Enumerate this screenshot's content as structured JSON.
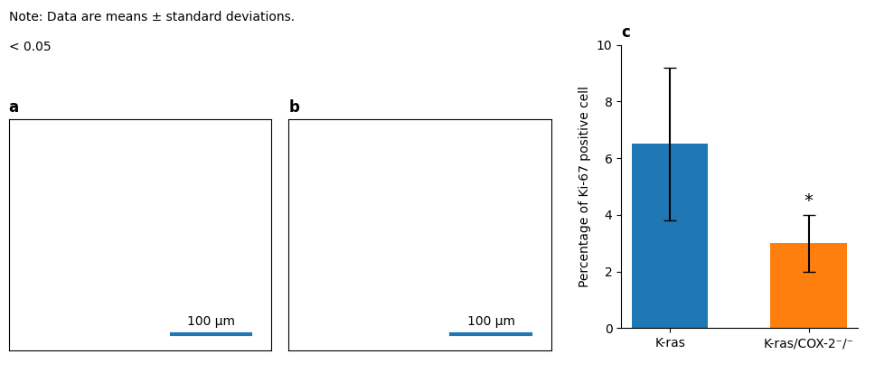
{
  "annotations": [
    "Note: Data are means ± standard deviations.",
    "< 0.05"
  ],
  "chart_data": [
    {
      "type": "image",
      "title": "a",
      "annotations": [
        "100 μm"
      ]
    },
    {
      "type": "image",
      "title": "b",
      "annotations": [
        "100 μm"
      ]
    },
    {
      "type": "bar",
      "title": "c",
      "categories": [
        "K-ras",
        "K-ras/COX-2⁻/⁻"
      ],
      "values": [
        6.5,
        3.0
      ],
      "errors": [
        2.7,
        1.0
      ],
      "ylabel": "Percentage of Ki-67 positive cell",
      "ylim": [
        0,
        10
      ],
      "yticks": [
        0,
        2,
        4,
        6,
        8,
        10
      ],
      "annotations": [
        {
          "text": "*",
          "category": "K-ras/COX-2⁻/⁻"
        }
      ]
    }
  ]
}
